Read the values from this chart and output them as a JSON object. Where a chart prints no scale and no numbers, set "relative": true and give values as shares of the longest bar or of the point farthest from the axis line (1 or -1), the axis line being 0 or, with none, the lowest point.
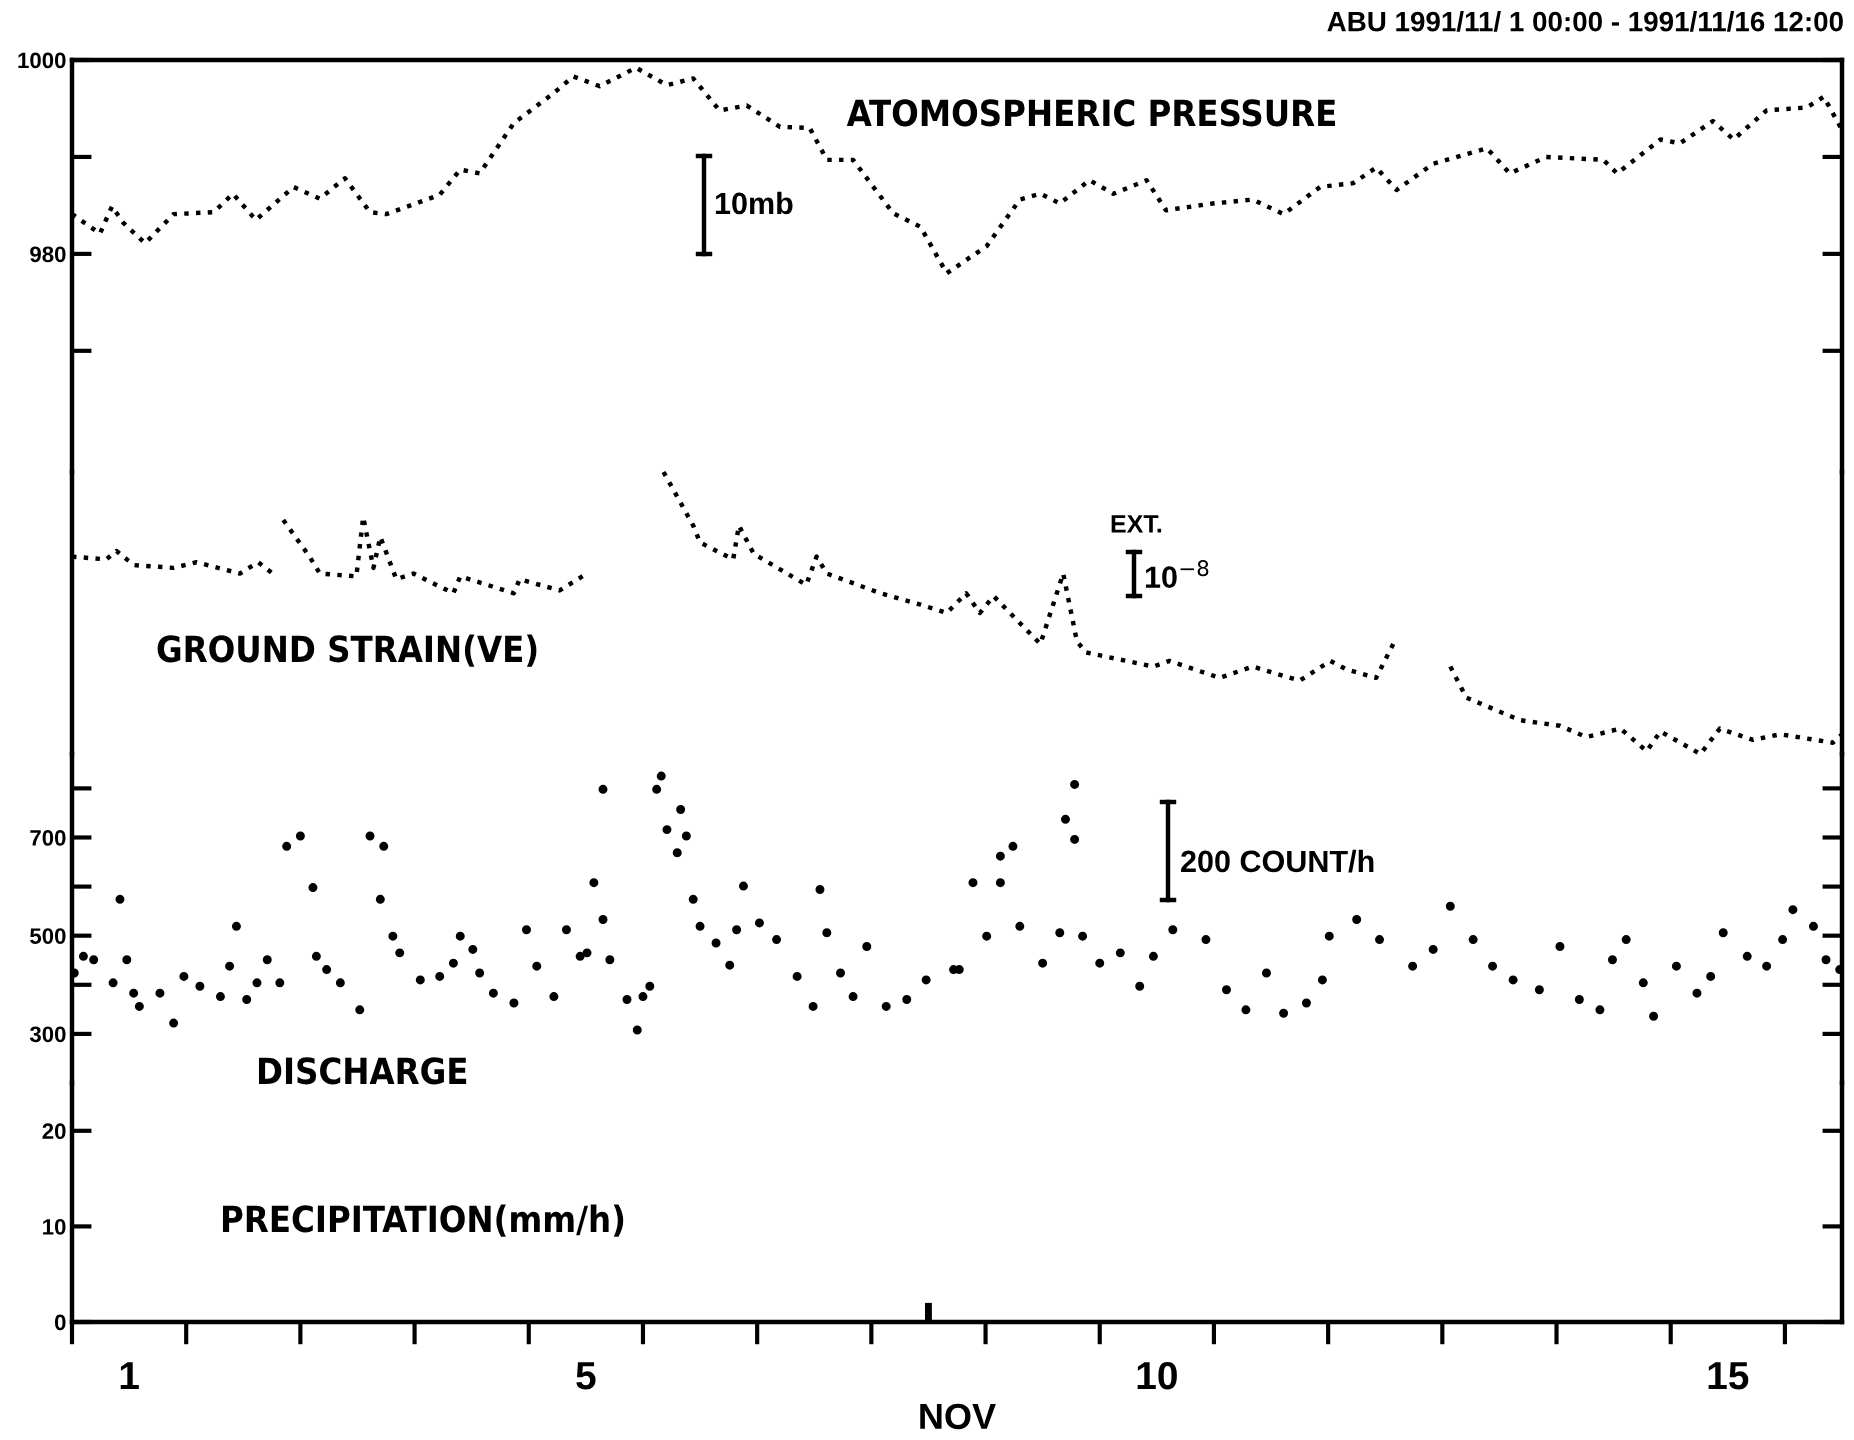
{
  "chart_data": [
    {
      "type": "line",
      "title": "ATOMOSPHERIC PRESSURE",
      "subtitle": "ABU 1991/11/ 1 00:00 - 1991/11/16 12:00",
      "annotations": [
        "10mb"
      ],
      "x": [
        1.0,
        1.245,
        1.35,
        1.45,
        1.64,
        1.89,
        2.24,
        2.41,
        2.61,
        2.94,
        3.17,
        3.39,
        3.61,
        3.75,
        4.22,
        4.4,
        4.57,
        4.87,
        5.22,
        5.39,
        5.62,
        5.94,
        6.21,
        6.44,
        6.67,
        6.91,
        7.2,
        7.46,
        7.61,
        7.84,
        8.19,
        8.43,
        8.66,
        9.01,
        9.3,
        9.48,
        9.65,
        9.91,
        10.12,
        10.41,
        10.58,
        10.99,
        11.34,
        11.61,
        11.93,
        12.22,
        12.42,
        12.6,
        12.92,
        13.39,
        13.59,
        13.91,
        14.41,
        14.53,
        14.91,
        15.08,
        15.37,
        15.55,
        15.84,
        16.19,
        16.34,
        16.5
      ],
      "series": [
        {
          "color": "#000000",
          "values": [
            984.1,
            982.1,
            984.9,
            983.2,
            981.1,
            984.1,
            984.3,
            986.2,
            983.5,
            986.9,
            985.7,
            987.8,
            984.3,
            984.1,
            986.1,
            988.7,
            988.3,
            993.5,
            996.6,
            998.3,
            997.3,
            999.2,
            997.4,
            998.1,
            994.8,
            995.3,
            993.1,
            993.0,
            989.7,
            989.7,
            984.2,
            982.8,
            978.0,
            980.8,
            985.6,
            986.2,
            985.2,
            987.6,
            986.2,
            987.6,
            984.5,
            985.2,
            985.6,
            984.1,
            986.9,
            987.3,
            988.9,
            986.6,
            989.3,
            990.9,
            988.3,
            990.0,
            989.7,
            988.3,
            991.8,
            991.4,
            993.7,
            991.8,
            994.8,
            995.1,
            996.2,
            992.8
          ]
        }
      ],
      "xlim": [
        1,
        16.5
      ],
      "ylim": [
        957.5,
        1000
      ],
      "yticks": [
        1000,
        {
          "value": 990,
          "label": null
        },
        980,
        {
          "value": 970,
          "label": null
        }
      ],
      "tick_labels": "y",
      "line_style": "dotted",
      "grid": false,
      "legend": false
    },
    {
      "type": "line",
      "title": "GROUND STRAIN(VE)",
      "annotations": [
        "EXT.",
        "10$^{−8}$"
      ],
      "relative": true,
      "x": [
        1.0,
        1.3,
        1.39,
        1.54,
        1.89,
        2.09,
        2.47,
        2.63,
        2.79,
        2.82,
        2.85,
        3.08,
        3.17,
        3.49,
        3.55,
        3.64,
        3.7,
        3.84,
        3.99,
        4.34,
        4.4,
        4.87,
        4.92,
        5.27,
        5.51,
        5.8,
        6.18,
        6.44,
        6.5,
        6.79,
        6.84,
        6.97,
        7.43,
        7.52,
        7.61,
        8.08,
        8.43,
        8.66,
        8.83,
        8.95,
        9.07,
        9.48,
        9.68,
        9.8,
        9.88,
        10.47,
        10.61,
        11.05,
        11.34,
        11.75,
        12.02,
        12.16,
        12.42,
        12.57,
        12.8,
        13.07,
        13.21,
        13.68,
        14.03,
        14.26,
        14.56,
        14.79,
        14.91,
        15.26,
        15.43,
        15.72,
        15.96,
        16.42,
        16.5
      ],
      "series": [
        {
          "color": "#000000",
          "values": [
            0.7,
            0.69,
            0.72,
            0.67,
            0.66,
            0.68,
            0.64,
            0.68,
            0.63,
            null,
            0.83,
            0.7,
            0.64,
            0.63,
            0.84,
            0.66,
            0.77,
            0.62,
            0.64,
            0.57,
            0.63,
            0.57,
            0.62,
            0.58,
            0.64,
            null,
            1.0,
            0.81,
            0.75,
            0.69,
            0.81,
            0.71,
            0.6,
            0.7,
            0.64,
            0.57,
            0.53,
            0.5,
            0.57,
            0.5,
            0.56,
            0.39,
            0.64,
            0.4,
            0.36,
            0.31,
            0.33,
            0.27,
            0.31,
            0.26,
            0.33,
            0.3,
            0.27,
            0.39,
            null,
            0.31,
            0.2,
            0.12,
            0.1,
            0.06,
            0.09,
            0.01,
            0.08,
            0.0,
            0.09,
            0.05,
            0.07,
            0.04,
            0.07
          ]
        }
      ],
      "xlim": [
        1,
        16.5
      ],
      "tick_labels": false,
      "line_style": "dotted",
      "grid": false,
      "legend": false
    },
    {
      "type": "scatter",
      "title": "DISCHARGE",
      "annotations": [
        "200 COUNT/h"
      ],
      "x": [
        1.02,
        1.1,
        1.19,
        1.36,
        1.42,
        1.48,
        1.54,
        1.59,
        1.77,
        1.89,
        1.98,
        2.12,
        2.3,
        2.38,
        2.44,
        2.53,
        2.62,
        2.71,
        2.82,
        2.88,
        3.0,
        3.11,
        3.14,
        3.23,
        3.35,
        3.52,
        3.61,
        3.7,
        3.73,
        3.81,
        3.87,
        4.05,
        4.22,
        4.34,
        4.4,
        4.51,
        4.57,
        4.69,
        4.87,
        4.98,
        5.07,
        5.22,
        5.33,
        5.45,
        5.51,
        5.57,
        5.65,
        5.65,
        5.71,
        5.86,
        5.95,
        6.0,
        6.06,
        6.12,
        6.16,
        6.21,
        6.33,
        6.38,
        6.3,
        6.44,
        6.5,
        6.64,
        6.76,
        6.82,
        6.88,
        7.02,
        7.17,
        7.35,
        7.49,
        7.55,
        7.61,
        7.73,
        7.84,
        7.96,
        8.13,
        8.31,
        8.48,
        8.72,
        8.77,
        8.89,
        9.01,
        9.13,
        9.13,
        9.24,
        9.3,
        9.5,
        9.65,
        9.7,
        9.78,
        9.78,
        9.85,
        10.0,
        10.18,
        10.35,
        10.47,
        10.64,
        10.93,
        11.11,
        11.28,
        11.46,
        11.61,
        11.81,
        11.95,
        12.01,
        12.25,
        12.45,
        12.74,
        12.92,
        13.07,
        13.27,
        13.44,
        13.62,
        13.85,
        14.03,
        14.2,
        14.38,
        14.49,
        14.61,
        14.76,
        14.85,
        15.05,
        15.23,
        15.35,
        15.46,
        15.67,
        15.84,
        15.98,
        16.07,
        16.25,
        16.36,
        16.48
      ],
      "series": [
        {
          "color": "#000000",
          "values": [
            424,
            458,
            451,
            404,
            574,
            451,
            383,
            356,
            383,
            322,
            417,
            397,
            376,
            438,
            519,
            370,
            404,
            451,
            404,
            682,
            703,
            598,
            458,
            431,
            404,
            349,
            703,
            574,
            682,
            499,
            465,
            410,
            417,
            444,
            499,
            472,
            424,
            383,
            363,
            512,
            438,
            376,
            512,
            458,
            465,
            608,
            798,
            533,
            451,
            370,
            308,
            376,
            397,
            798,
            825,
            716,
            757,
            703,
            669,
            574,
            519,
            485,
            440,
            512,
            601,
            526,
            492,
            417,
            356,
            594,
            506,
            424,
            376,
            478,
            356,
            370,
            410,
            431,
            431,
            608,
            499,
            608,
            662,
            682,
            519,
            444,
            506,
            737,
            808,
            696,
            499,
            444,
            465,
            397,
            458,
            512,
            492,
            390,
            349,
            424,
            342,
            363,
            410,
            499,
            533,
            492,
            438,
            472,
            560,
            492,
            438,
            410,
            390,
            478,
            370,
            349,
            451,
            492,
            404,
            336,
            438,
            383,
            417,
            506,
            458,
            438,
            492,
            553,
            519,
            451,
            431
          ]
        }
      ],
      "xlim": [
        1,
        16.5
      ],
      "ylim": [
        200,
        870
      ],
      "yticks": [
        {
          "value": 800,
          "label": null
        },
        700,
        {
          "value": 600,
          "label": null
        },
        500,
        {
          "value": 400,
          "label": null
        },
        300
      ],
      "tick_labels": "y",
      "marker": "circle",
      "grid": false,
      "legend": false
    },
    {
      "type": "bar",
      "title": "PRECIPITATION(mm/h)",
      "xlabel": "NOV",
      "x": [
        8.5
      ],
      "series": [
        {
          "color": "#000000",
          "values": [
            2
          ]
        }
      ],
      "xlim": [
        1,
        16.5
      ],
      "ylim": [
        0,
        25
      ],
      "yticks": [
        0,
        10,
        20
      ],
      "xticks": [
        {
          "value": 1,
          "label": null
        },
        {
          "value": 2,
          "label": null
        },
        {
          "value": 3,
          "label": null
        },
        {
          "value": 4,
          "label": null
        },
        {
          "value": 5,
          "label": null
        },
        {
          "value": 6,
          "label": null
        },
        {
          "value": 7,
          "label": null
        },
        {
          "value": 8,
          "label": null
        },
        {
          "value": 9,
          "label": null
        },
        {
          "value": 10,
          "label": null
        },
        {
          "value": 11,
          "label": null
        },
        {
          "value": 12,
          "label": null
        },
        {
          "value": 13,
          "label": null
        },
        {
          "value": 14,
          "label": null
        },
        {
          "value": 15,
          "label": null
        },
        {
          "value": 16,
          "label": null
        },
        {
          "value": 1.5,
          "label": "1"
        },
        {
          "value": 5.5,
          "label": "5"
        },
        {
          "value": 10.5,
          "label": "10"
        },
        {
          "value": 15.5,
          "label": "15"
        }
      ],
      "grid": false,
      "legend": false
    }
  ]
}
